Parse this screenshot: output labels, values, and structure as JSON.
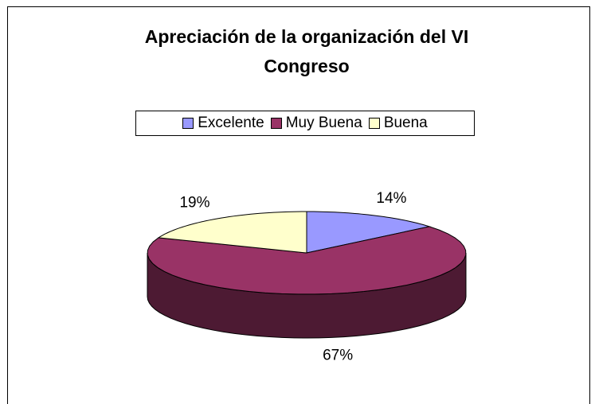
{
  "chart_data": {
    "type": "pie3d",
    "title": "Apreciación de la organización del VI Congreso",
    "categories": [
      "Excelente",
      "Muy Buena",
      "Buena"
    ],
    "values": [
      14,
      67,
      19
    ],
    "value_labels": [
      "14%",
      "67%",
      "19%"
    ],
    "colors": [
      "#9999ff",
      "#993366",
      "#ffffcc"
    ],
    "legend": "top"
  }
}
